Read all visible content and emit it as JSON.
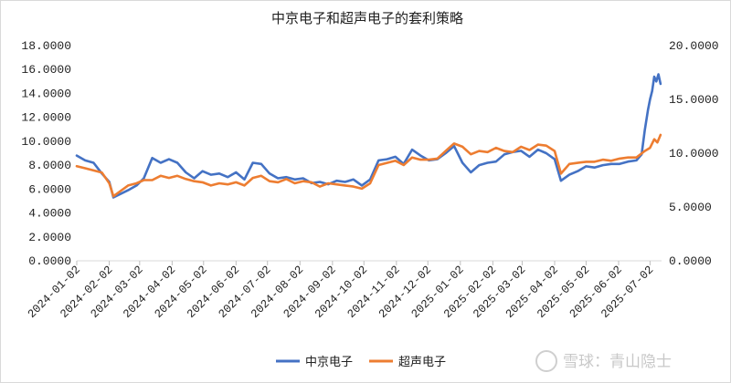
{
  "chart_data": {
    "type": "line",
    "title": "中京电子和超声电子的套利策略",
    "y_left": {
      "ticks": [
        "0.0000",
        "2.0000",
        "4.0000",
        "6.0000",
        "8.0000",
        "10.0000",
        "12.0000",
        "14.0000",
        "16.0000",
        "18.0000"
      ],
      "range": [
        0,
        18
      ]
    },
    "y_right": {
      "ticks": [
        "0.0000",
        "5.0000",
        "10.0000",
        "15.0000",
        "20.0000"
      ],
      "range": [
        0,
        20
      ]
    },
    "x_ticks": [
      "2024-01-02",
      "2024-02-02",
      "2024-03-02",
      "2024-04-02",
      "2024-05-02",
      "2024-06-02",
      "2024-07-02",
      "2024-08-02",
      "2024-09-02",
      "2024-10-02",
      "2024-11-02",
      "2024-12-02",
      "2025-01-02",
      "2025-02-02",
      "2025-03-02",
      "2025-04-02",
      "2025-05-02",
      "2025-06-02",
      "2025-07-02"
    ],
    "x_range": [
      "2024-01-02",
      "2025-07-13"
    ],
    "legend_position": "bottom",
    "grid": false,
    "series": [
      {
        "name": "中京电子",
        "axis": "left",
        "color": "#4472C4",
        "x": [
          "2024-01-02",
          "2024-01-10",
          "2024-01-18",
          "2024-01-26",
          "2024-02-02",
          "2024-02-06",
          "2024-02-20",
          "2024-02-28",
          "2024-03-06",
          "2024-03-14",
          "2024-03-22",
          "2024-03-30",
          "2024-04-07",
          "2024-04-15",
          "2024-04-23",
          "2024-05-01",
          "2024-05-09",
          "2024-05-17",
          "2024-05-25",
          "2024-06-02",
          "2024-06-10",
          "2024-06-18",
          "2024-06-26",
          "2024-07-04",
          "2024-07-12",
          "2024-07-20",
          "2024-07-28",
          "2024-08-05",
          "2024-08-13",
          "2024-08-21",
          "2024-08-29",
          "2024-09-06",
          "2024-09-14",
          "2024-09-22",
          "2024-09-30",
          "2024-10-08",
          "2024-10-16",
          "2024-10-24",
          "2024-11-01",
          "2024-11-09",
          "2024-11-17",
          "2024-11-25",
          "2024-12-03",
          "2024-12-11",
          "2024-12-19",
          "2024-12-27",
          "2025-01-04",
          "2025-01-12",
          "2025-01-20",
          "2025-01-28",
          "2025-02-05",
          "2025-02-13",
          "2025-02-21",
          "2025-03-01",
          "2025-03-09",
          "2025-03-17",
          "2025-03-25",
          "2025-04-02",
          "2025-04-08",
          "2025-04-16",
          "2025-04-24",
          "2025-05-02",
          "2025-05-10",
          "2025-05-18",
          "2025-05-26",
          "2025-06-03",
          "2025-06-11",
          "2025-06-19",
          "2025-06-24",
          "2025-06-27",
          "2025-06-30",
          "2025-07-02",
          "2025-07-04",
          "2025-07-06",
          "2025-07-08",
          "2025-07-10",
          "2025-07-12"
        ],
        "values": [
          8.8,
          8.4,
          8.2,
          7.3,
          6.6,
          5.3,
          5.9,
          6.3,
          6.9,
          8.6,
          8.2,
          8.5,
          8.2,
          7.4,
          6.9,
          7.5,
          7.2,
          7.3,
          7.0,
          7.4,
          6.8,
          8.2,
          8.1,
          7.3,
          6.9,
          7.0,
          6.8,
          6.9,
          6.5,
          6.6,
          6.4,
          6.7,
          6.6,
          6.8,
          6.3,
          6.8,
          8.4,
          8.5,
          8.7,
          8.1,
          9.3,
          8.8,
          8.4,
          8.5,
          9.0,
          9.6,
          8.2,
          7.4,
          8.0,
          8.2,
          8.3,
          8.9,
          9.1,
          9.2,
          8.7,
          9.3,
          9.0,
          8.5,
          6.7,
          7.2,
          7.5,
          7.9,
          7.8,
          8.0,
          8.1,
          8.1,
          8.3,
          8.4,
          8.9,
          10.9,
          12.6,
          13.5,
          14.2,
          15.4,
          15.0,
          15.6,
          14.8
        ]
      },
      {
        "name": "超声电子",
        "axis": "right",
        "color": "#ED7D31",
        "x": [
          "2024-01-02",
          "2024-01-10",
          "2024-01-18",
          "2024-01-26",
          "2024-02-02",
          "2024-02-06",
          "2024-02-20",
          "2024-02-28",
          "2024-03-06",
          "2024-03-14",
          "2024-03-22",
          "2024-03-30",
          "2024-04-07",
          "2024-04-15",
          "2024-04-23",
          "2024-05-01",
          "2024-05-09",
          "2024-05-17",
          "2024-05-25",
          "2024-06-02",
          "2024-06-10",
          "2024-06-18",
          "2024-06-26",
          "2024-07-04",
          "2024-07-12",
          "2024-07-20",
          "2024-07-28",
          "2024-08-05",
          "2024-08-13",
          "2024-08-21",
          "2024-08-29",
          "2024-09-06",
          "2024-09-14",
          "2024-09-22",
          "2024-09-30",
          "2024-10-08",
          "2024-10-16",
          "2024-10-24",
          "2024-11-01",
          "2024-11-09",
          "2024-11-17",
          "2024-11-25",
          "2024-12-03",
          "2024-12-11",
          "2024-12-19",
          "2024-12-27",
          "2025-01-04",
          "2025-01-12",
          "2025-01-20",
          "2025-01-28",
          "2025-02-05",
          "2025-02-13",
          "2025-02-21",
          "2025-03-01",
          "2025-03-09",
          "2025-03-17",
          "2025-03-25",
          "2025-04-02",
          "2025-04-08",
          "2025-04-16",
          "2025-04-24",
          "2025-05-02",
          "2025-05-10",
          "2025-05-18",
          "2025-05-26",
          "2025-06-03",
          "2025-06-11",
          "2025-06-19",
          "2025-06-27",
          "2025-07-02",
          "2025-07-06",
          "2025-07-09",
          "2025-07-12"
        ],
        "values": [
          8.8,
          8.6,
          8.4,
          8.2,
          7.2,
          6.0,
          7.0,
          7.2,
          7.5,
          7.5,
          7.9,
          7.7,
          7.9,
          7.6,
          7.4,
          7.3,
          7.0,
          7.2,
          7.1,
          7.3,
          7.0,
          7.7,
          7.9,
          7.4,
          7.3,
          7.6,
          7.2,
          7.4,
          7.3,
          6.9,
          7.2,
          7.1,
          7.0,
          6.9,
          6.7,
          7.2,
          8.9,
          9.1,
          9.3,
          8.9,
          9.6,
          9.4,
          9.4,
          9.5,
          10.2,
          10.9,
          10.6,
          9.9,
          10.2,
          10.1,
          10.5,
          10.2,
          10.1,
          10.6,
          10.3,
          10.8,
          10.7,
          10.2,
          8.1,
          9.0,
          9.1,
          9.2,
          9.2,
          9.4,
          9.3,
          9.5,
          9.6,
          9.6,
          10.2,
          10.5,
          11.3,
          11.0,
          11.7
        ]
      }
    ],
    "watermark": "雪球：青山隐士"
  }
}
